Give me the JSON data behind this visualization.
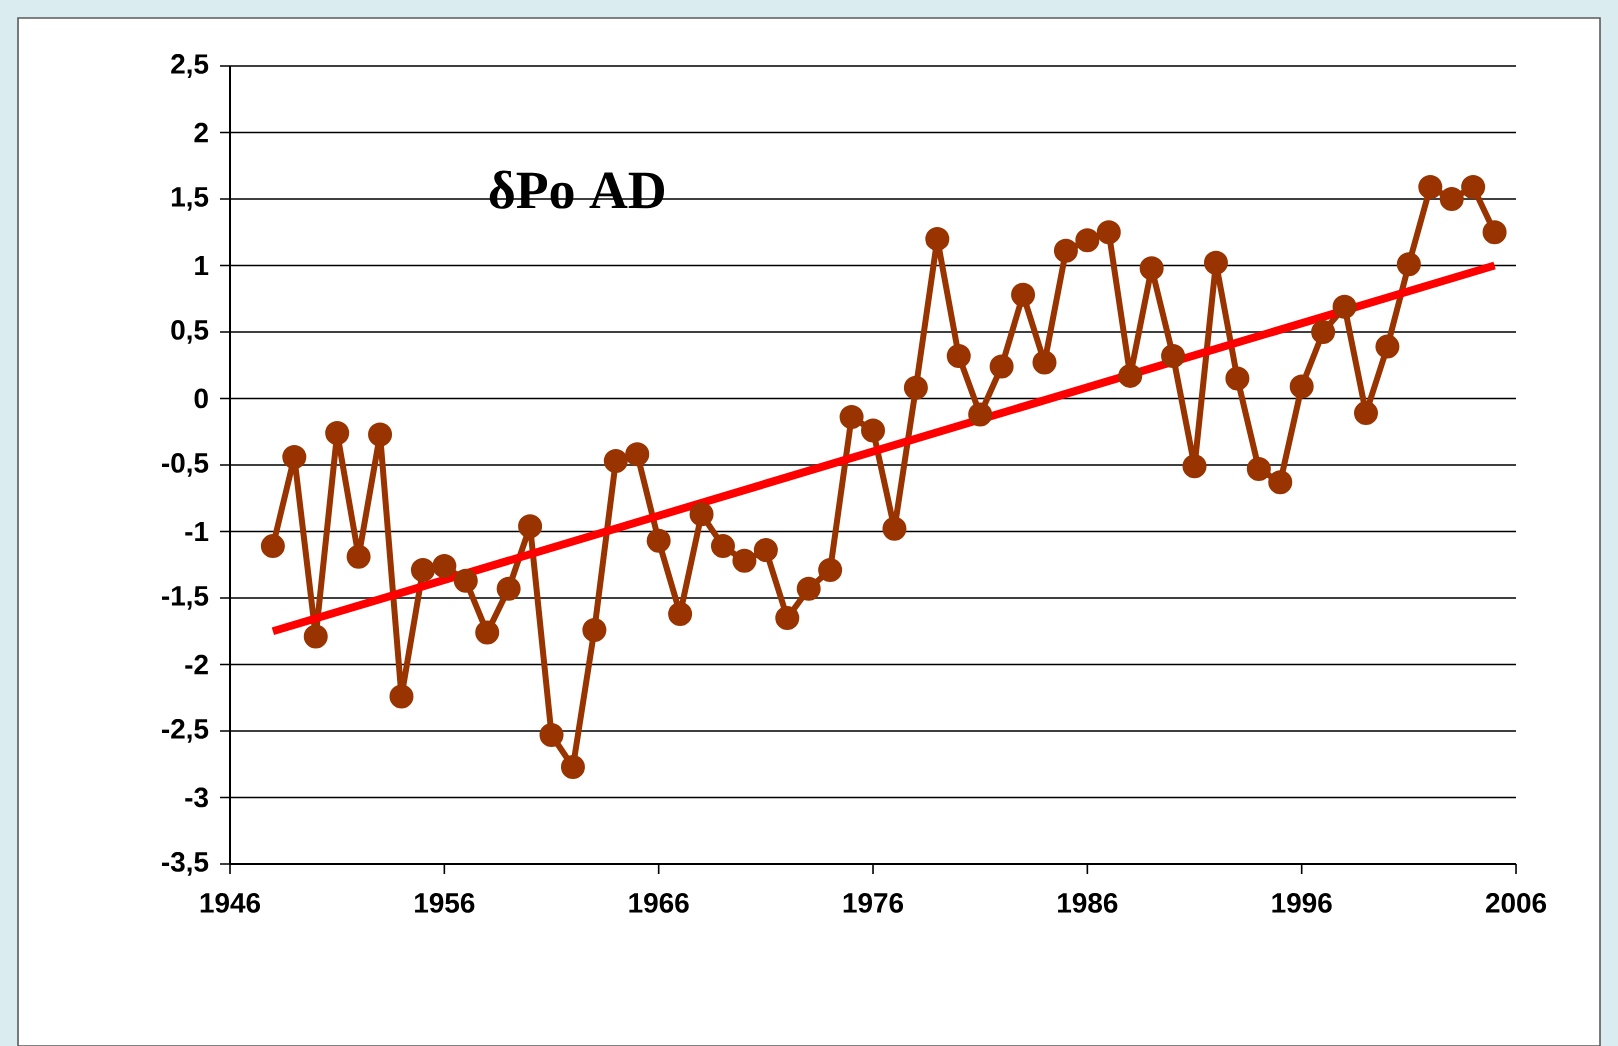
{
  "chart_data": {
    "type": "line",
    "title": "δPo AD",
    "series": [
      {
        "color": "#993300",
        "marker": "circle",
        "x": [
          1948,
          1949,
          1950,
          1951,
          1952,
          1953,
          1954,
          1955,
          1956,
          1957,
          1958,
          1959,
          1960,
          1961,
          1962,
          1963,
          1964,
          1965,
          1966,
          1967,
          1968,
          1969,
          1970,
          1971,
          1972,
          1973,
          1974,
          1975,
          1976,
          1977,
          1978,
          1979,
          1980,
          1981,
          1982,
          1983,
          1984,
          1985,
          1986,
          1987,
          1988,
          1989,
          1990,
          1991,
          1992,
          1993,
          1994,
          1995,
          1996,
          1997,
          1998,
          1999,
          2000,
          2001,
          2002,
          2003,
          2004,
          2005
        ],
        "values": [
          -1.11,
          -0.44,
          -1.79,
          -0.26,
          -1.19,
          -0.27,
          -2.24,
          -1.29,
          -1.26,
          -1.37,
          -1.76,
          -1.43,
          -0.96,
          -2.53,
          -2.77,
          -1.74,
          -0.47,
          -0.42,
          -1.07,
          -1.62,
          -0.87,
          -1.11,
          -1.22,
          -1.14,
          -1.65,
          -1.43,
          -1.29,
          -0.14,
          -0.24,
          -0.98,
          0.08,
          1.2,
          0.32,
          -0.12,
          0.24,
          0.78,
          0.27,
          1.11,
          1.19,
          1.25,
          0.17,
          0.98,
          0.32,
          -0.51,
          1.02,
          0.15,
          -0.53,
          -0.63,
          0.09,
          0.5,
          0.69,
          -0.11,
          0.39,
          1.01,
          1.59,
          1.5,
          1.59,
          1.25
        ]
      },
      {
        "color": "#ff0000",
        "marker": "none",
        "x": [
          1948,
          2005
        ],
        "values": [
          -1.75,
          1.0
        ]
      }
    ],
    "xlim": [
      1946,
      2006
    ],
    "xticks": [
      1946,
      1956,
      1966,
      1976,
      1986,
      1996,
      2006
    ],
    "ylim": [
      -3.5,
      2.5
    ],
    "yticks": [
      {
        "value": -3.5,
        "label": "-3,5"
      },
      {
        "value": -3,
        "label": "-3"
      },
      {
        "value": -2.5,
        "label": "-2,5"
      },
      {
        "value": -2,
        "label": "-2"
      },
      {
        "value": -1.5,
        "label": "-1,5"
      },
      {
        "value": -1,
        "label": "-1"
      },
      {
        "value": -0.5,
        "label": "-0,5"
      },
      {
        "value": 0,
        "label": "0"
      },
      {
        "value": 0.5,
        "label": "0,5"
      },
      {
        "value": 1,
        "label": "1"
      },
      {
        "value": 1.5,
        "label": "1,5"
      },
      {
        "value": 2,
        "label": "2"
      },
      {
        "value": 2.5,
        "label": "2,5"
      }
    ],
    "grid": "y"
  }
}
